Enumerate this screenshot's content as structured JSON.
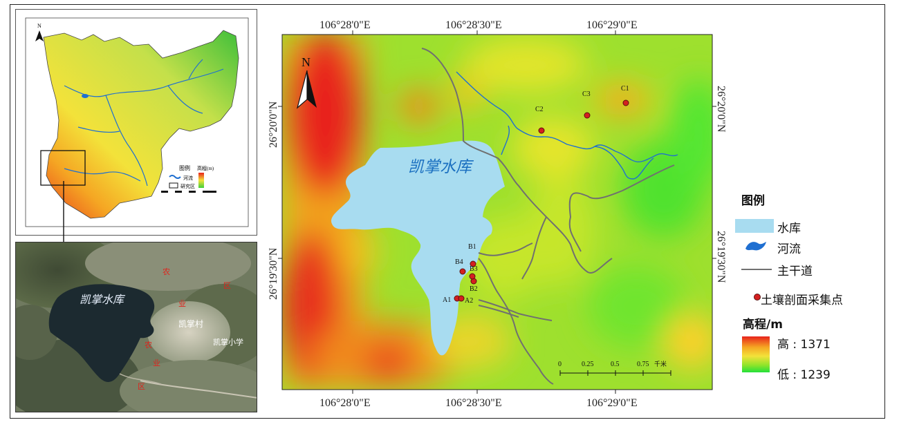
{
  "main_map": {
    "top_lon_labels": [
      "106°28'0\"E",
      "106°28'30\"E",
      "106°29'0\"E"
    ],
    "bottom_lon_labels": [
      "106°28'0\"E",
      "106°28'30\"E",
      "106°29'0\"E"
    ],
    "left_lat_labels": [
      "26°20'0\"N",
      "26°19'30\"N"
    ],
    "right_lat_labels": [
      "26°20'0\"N",
      "26°19'30\"N"
    ],
    "north_label": "N",
    "reservoir_label": "凯掌水库",
    "sample_points": [
      "C1",
      "C2",
      "C3",
      "B1",
      "B2",
      "B3",
      "B4",
      "A1",
      "A2"
    ],
    "scale_ticks": [
      "0",
      "0.25",
      "0.5",
      "0.75"
    ],
    "scale_unit": "千米"
  },
  "legend": {
    "title": "图例",
    "reservoir": "水库",
    "river": "河流",
    "road": "主干道",
    "sample": "土壤剖面采集点",
    "elevation_title": "高程/m",
    "high": "高 : 1371",
    "low": "低 : 1239",
    "colors": {
      "reservoir": "#a8dcf0",
      "river": "#1f6fd1",
      "road": "#707070",
      "point": "#d42020",
      "high": "#e8231c",
      "low": "#23e03a"
    }
  },
  "overview_map": {
    "north_label": "N",
    "legend_title": "图例",
    "legend_river": "河流",
    "legend_study": "研究区",
    "legend_elev": "高程(m)"
  },
  "satellite": {
    "reservoir_label": "凯掌水库",
    "village_label": "凯掌村",
    "school_label": "凯掌小学",
    "zone_chars": [
      "农",
      "业",
      "区",
      "农",
      "业",
      "区"
    ]
  }
}
